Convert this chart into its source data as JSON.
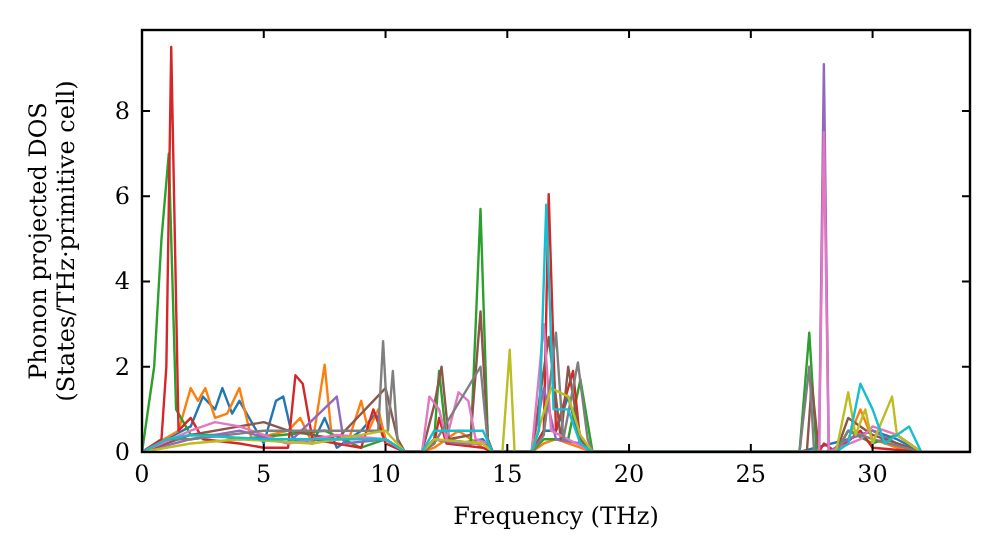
{
  "chart_data": {
    "type": "line",
    "xlabel": "Frequency (THz)",
    "ylabel": "Phonon projected DOS\n(States/THz·primitive cell)",
    "xlim": [
      0,
      34
    ],
    "ylim": [
      0,
      9.9
    ],
    "xticks": [
      0,
      5,
      10,
      15,
      20,
      25,
      30
    ],
    "yticks": [
      0,
      2,
      4,
      6,
      8
    ],
    "series": [
      {
        "color": "#1f77b4",
        "x": [
          0,
          1,
          2,
          2.5,
          3,
          3.3,
          3.7,
          4,
          5,
          5.5,
          5.8,
          6.2,
          7,
          7.5,
          8,
          9,
          9.6,
          10,
          10.8,
          11.5,
          12,
          13,
          14,
          14.4,
          16,
          16.5,
          17,
          17.5,
          18,
          18.5,
          27,
          29,
          30,
          31,
          32
        ],
        "values": [
          0,
          0.3,
          0.6,
          1.3,
          1,
          1.5,
          0.9,
          1.2,
          0.2,
          1.2,
          1.3,
          0.3,
          0.2,
          0.8,
          0.1,
          0.5,
          0.9,
          0.3,
          0,
          0,
          0.3,
          0.2,
          0.3,
          0,
          0,
          0.5,
          0.5,
          1.3,
          0.2,
          0,
          0,
          0.3,
          0.5,
          0.3,
          0
        ]
      },
      {
        "color": "#ff7f0e",
        "x": [
          0,
          1.5,
          2,
          2.3,
          2.6,
          3,
          3.5,
          4,
          4.5,
          6,
          6.5,
          7,
          7.5,
          7.8,
          8.5,
          9,
          9.3,
          9.7,
          10,
          10.8,
          11.5,
          12,
          13,
          13.5,
          14,
          14.4,
          16,
          16.5,
          17,
          18,
          18.5,
          28.5,
          29,
          29.5,
          30,
          31,
          32
        ],
        "values": [
          0,
          0.5,
          1.5,
          1.2,
          1.5,
          0.8,
          0.9,
          1.5,
          0.3,
          0.5,
          0.8,
          0.2,
          2.05,
          0.3,
          0.3,
          1.2,
          0.5,
          1,
          0.3,
          0,
          0,
          0.1,
          0.5,
          0.3,
          0.1,
          0,
          0,
          0.2,
          0.3,
          0.1,
          0,
          0,
          0.3,
          1,
          0.3,
          0.1,
          0
        ]
      },
      {
        "color": "#2ca02c",
        "x": [
          0,
          0.5,
          0.8,
          1.1,
          1.4,
          2,
          3,
          4,
          7.5,
          9,
          10,
          10.8,
          11.5,
          12,
          12.2,
          12.5,
          13.5,
          13.9,
          14.2,
          14.4,
          16,
          16.5,
          17.5,
          18,
          18.5,
          27,
          27.4,
          27.7,
          28.5,
          29,
          30,
          31,
          32
        ],
        "values": [
          0,
          2,
          5,
          7,
          1,
          0.4,
          0.4,
          0.3,
          0.5,
          0.1,
          0.3,
          0,
          0,
          0.3,
          1.9,
          0.3,
          0.2,
          5.7,
          0.3,
          0,
          0,
          0.3,
          0.3,
          1.7,
          0,
          0,
          2.8,
          0,
          0,
          0.5,
          0.2,
          0.4,
          0
        ]
      },
      {
        "color": "#d62728",
        "x": [
          0,
          0.8,
          1,
          1.2,
          1.5,
          2,
          2.5,
          4,
          5,
          6,
          6.3,
          6.6,
          7,
          9,
          9.5,
          10,
          10.8,
          11.5,
          12,
          12.2,
          12.5,
          14,
          14.4,
          16,
          16.5,
          16.7,
          17,
          17.7,
          18,
          18.5,
          27.8,
          28,
          28.5,
          29.5,
          30,
          32
        ],
        "values": [
          0,
          0.3,
          2,
          9.5,
          0.5,
          0.8,
          0.3,
          0.2,
          0.1,
          0.1,
          1.8,
          1.6,
          0.3,
          0.1,
          1,
          0.2,
          0,
          0,
          0.2,
          0.8,
          0.2,
          0.1,
          0,
          0,
          0.5,
          6.05,
          0.5,
          1.9,
          0.2,
          0,
          0,
          0.2,
          0,
          0.5,
          0.1,
          0
        ]
      },
      {
        "color": "#9467bd",
        "x": [
          0,
          2,
          3,
          4,
          6,
          8,
          8.3,
          10,
          10.8,
          11.5,
          12,
          13,
          14,
          14.4,
          16,
          16.5,
          17,
          18,
          18.5,
          27.8,
          28,
          28.2,
          29,
          30,
          31,
          32
        ],
        "values": [
          0,
          0.3,
          0.4,
          0.5,
          0.2,
          1.3,
          0.2,
          0.3,
          0,
          0,
          0.3,
          0.2,
          0.2,
          0,
          0,
          1.5,
          0.3,
          0.2,
          0,
          0,
          9.1,
          0,
          0.3,
          0.5,
          0.2,
          0
        ]
      },
      {
        "color": "#8c564b",
        "x": [
          0,
          2,
          4,
          5,
          6,
          8,
          10,
          10.5,
          10.8,
          11.5,
          12,
          12.3,
          12.6,
          13.5,
          13.9,
          14.2,
          14.4,
          16,
          16.7,
          17.2,
          17.5,
          18,
          18.5,
          27.3,
          27.5,
          27.8,
          28.5,
          29,
          30,
          32,
          34
        ],
        "values": [
          0,
          0.4,
          0.6,
          0.7,
          0.5,
          0.3,
          1.5,
          0.3,
          0,
          0,
          1.1,
          2,
          0.3,
          0.4,
          3.3,
          0.3,
          0,
          0,
          2.7,
          0.3,
          2,
          0.3,
          0,
          0,
          1.6,
          0,
          0,
          0.8,
          0.4,
          0,
          0
        ]
      },
      {
        "color": "#e377c2",
        "x": [
          0,
          2,
          3,
          4,
          6,
          8,
          10,
          10.8,
          11.5,
          11.8,
          12.2,
          12.5,
          13,
          13.4,
          13.7,
          14.2,
          14.4,
          16,
          16.5,
          16.8,
          17.5,
          18.5,
          27.8,
          28,
          28.2,
          29.5,
          30,
          31,
          32
        ],
        "values": [
          0,
          0.5,
          0.7,
          0.6,
          0.2,
          0.4,
          0.3,
          0,
          0,
          1.3,
          1,
          0.3,
          1.4,
          1.2,
          0.3,
          0.2,
          0,
          0,
          3,
          0.5,
          0.3,
          0,
          0,
          7.5,
          0,
          0.3,
          0.6,
          0.4,
          0
        ]
      },
      {
        "color": "#7f7f7f",
        "x": [
          0,
          1,
          2,
          5,
          9.7,
          9.9,
          10.1,
          10.3,
          10.5,
          10.8,
          11.5,
          12,
          13.9,
          14.2,
          14.4,
          16,
          16.5,
          17,
          17.3,
          17.9,
          18.3,
          18.5,
          27,
          27.4,
          27.6,
          28.5,
          29,
          30,
          32
        ],
        "values": [
          0,
          0.3,
          0.3,
          0.5,
          0.5,
          2.6,
          0.5,
          1.9,
          0.2,
          0,
          0,
          0.2,
          2,
          0.2,
          0,
          0,
          0.4,
          2.8,
          0.3,
          2.1,
          0.3,
          0,
          0,
          2,
          0,
          0,
          0.5,
          0.3,
          0
        ]
      },
      {
        "color": "#bcbd22",
        "x": [
          0,
          2,
          4,
          7,
          10,
          10.8,
          11.5,
          12,
          14,
          14.4,
          14.8,
          15.1,
          15.3,
          16,
          16.8,
          17.5,
          18,
          18.5,
          28.5,
          29,
          29.3,
          29.7,
          30,
          30.8,
          31,
          32
        ],
        "values": [
          0,
          0.2,
          0.3,
          0.2,
          0.5,
          0,
          0,
          0.3,
          0.2,
          0,
          0,
          2.4,
          0,
          0,
          1.5,
          1.3,
          0.4,
          0,
          0,
          1.4,
          0.4,
          1,
          0.2,
          1.3,
          0.4,
          0
        ]
      },
      {
        "color": "#17becf",
        "x": [
          0,
          1,
          2,
          5,
          8,
          10,
          10.8,
          11.5,
          12,
          14,
          14.4,
          16,
          16.3,
          16.6,
          16.9,
          17.5,
          18,
          18.5,
          28.5,
          29,
          29.5,
          30,
          30.5,
          31,
          31.5,
          32
        ],
        "values": [
          0,
          0.3,
          0.4,
          0.3,
          0.3,
          0.3,
          0,
          0,
          0.5,
          0.5,
          0,
          0,
          0.5,
          5.8,
          1,
          1,
          0.2,
          0,
          0,
          0.2,
          1.6,
          1,
          0.2,
          0.4,
          0.6,
          0
        ]
      }
    ]
  }
}
